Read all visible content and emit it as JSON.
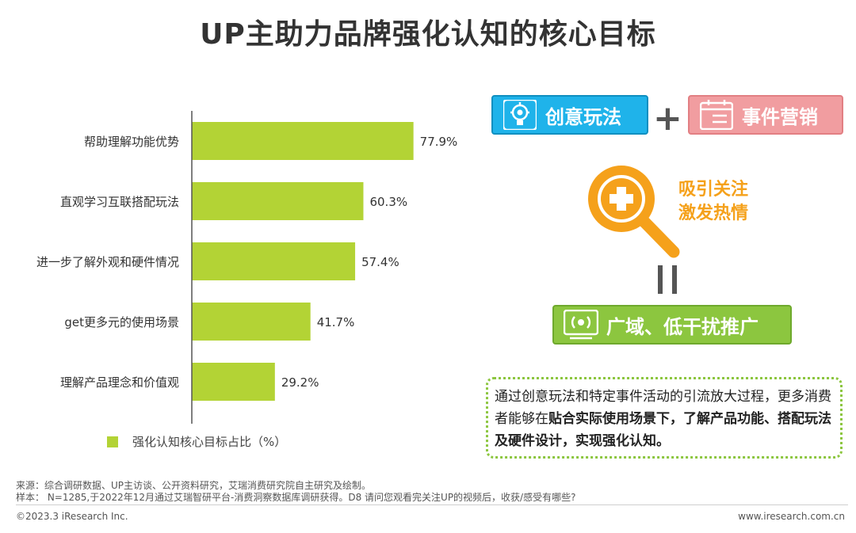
{
  "title": "UP主助力品牌强化认知的核心目标",
  "chart_data": {
    "type": "bar",
    "orientation": "horizontal",
    "categories": [
      "帮助理解功能优势",
      "直观学习互联搭配玩法",
      "进一步了解外观和硬件情况",
      "get更多元的使用场景",
      "理解产品理念和价值观"
    ],
    "values": [
      77.9,
      60.3,
      57.4,
      41.7,
      29.2
    ],
    "value_labels": [
      "77.9%",
      "60.3%",
      "57.4%",
      "41.7%",
      "29.2%"
    ],
    "series_name": "强化认知核心目标占比（%）",
    "bar_color": "#b3d335",
    "xlim": [
      0,
      100
    ],
    "grid": false,
    "legend_position": "bottom-left"
  },
  "legend": {
    "label": "强化认知核心目标占比（%）"
  },
  "right_panel": {
    "pill_creative": "创意玩法",
    "plus": "+",
    "pill_event": "事件营销",
    "attract_line1": "吸引关注",
    "attract_line2": "激发热情",
    "pill_reach": "广域、低干扰推广",
    "desc_part1": "通过创意玩法和特定事件活动的引流放大过程，更多消费者能够在",
    "desc_bold": "贴合实际使用场景下，了解产品功能、搭配玩法及硬件设计，实现强化认知。",
    "colors": {
      "cyan": "#1fb3ea",
      "pink": "#f19da0",
      "green": "#8cc63f",
      "orange": "#f5a11b"
    }
  },
  "footer": {
    "source": "来源：综合调研数据、UP主访谈、公开资料研究，艾瑞消费研究院自主研究及绘制。",
    "sample": "样本： N=1285,于2022年12月通过艾瑞智研平台-消费洞察数据库调研获得。D8 请问您观看完关注UP的视频后，收获/感受有哪些?",
    "copyright": "©2023.3 iResearch Inc.",
    "website": "www.iresearch.com.cn"
  }
}
